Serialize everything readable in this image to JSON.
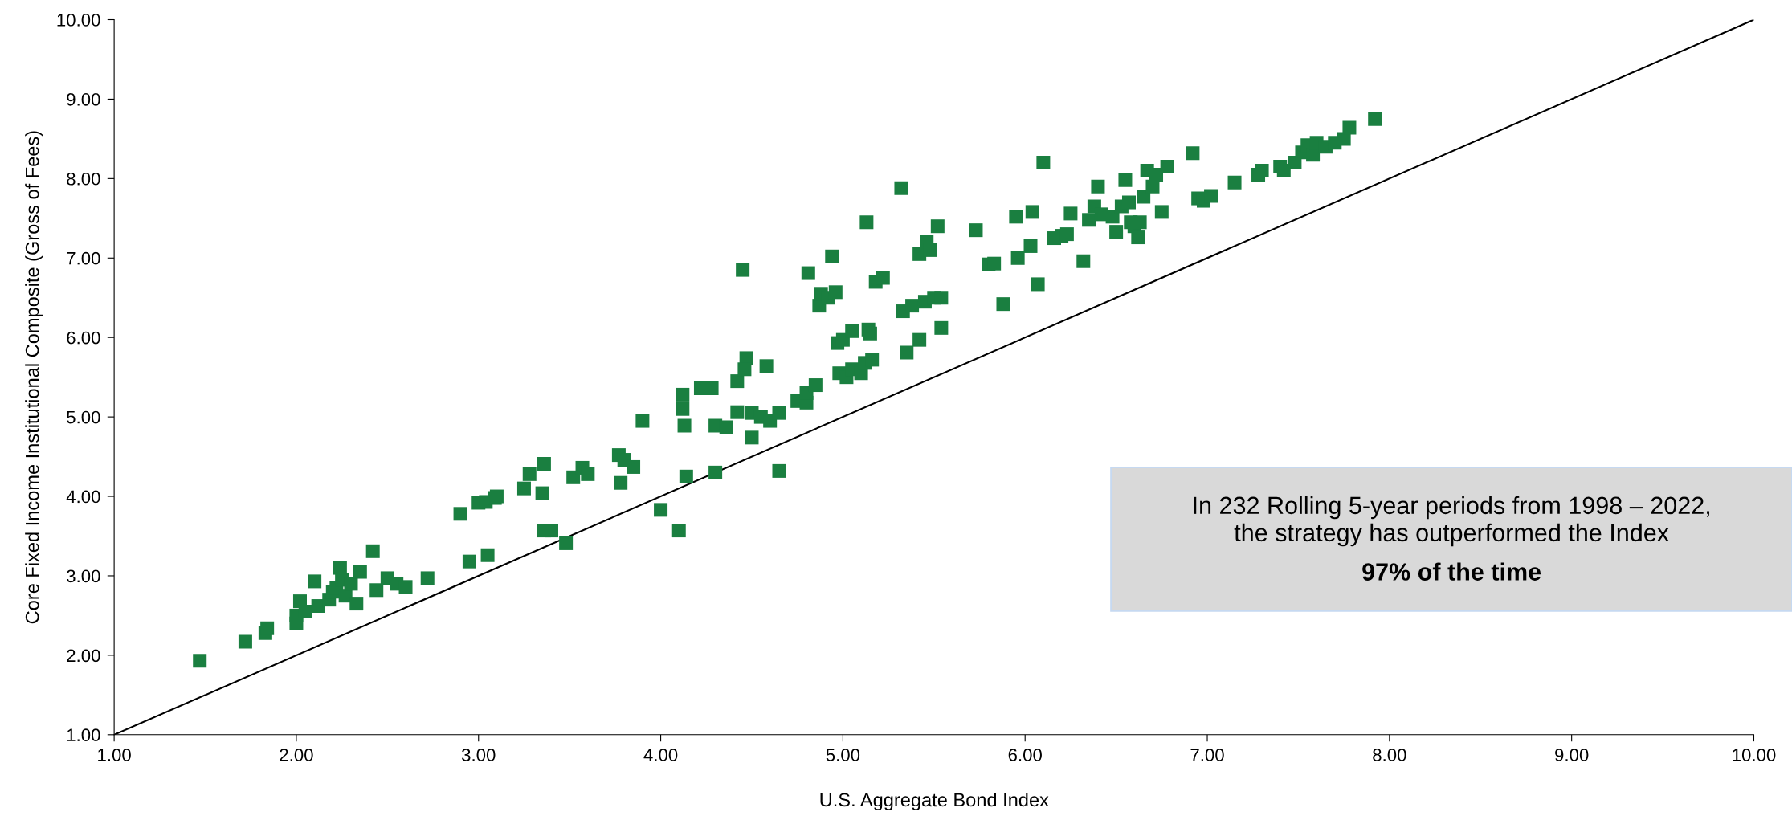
{
  "chart_data": {
    "type": "scatter",
    "xlabel": "U.S. Aggregate Bond Index",
    "ylabel": "Core Fixed Income Institutional Composite (Gross of Fees)",
    "xlim": [
      1,
      10
    ],
    "ylim": [
      1,
      10
    ],
    "xticks": [
      {
        "value": 1,
        "label": "1.00"
      },
      {
        "value": 2,
        "label": "2.00"
      },
      {
        "value": 3,
        "label": "3.00"
      },
      {
        "value": 4,
        "label": "4.00"
      },
      {
        "value": 5,
        "label": "5.00"
      },
      {
        "value": 6,
        "label": "6.00"
      },
      {
        "value": 7,
        "label": "7.00"
      },
      {
        "value": 8,
        "label": "8.00"
      },
      {
        "value": 9,
        "label": "9.00"
      },
      {
        "value": 10,
        "label": "10.00"
      }
    ],
    "yticks": [
      {
        "value": 1,
        "label": "1.00"
      },
      {
        "value": 2,
        "label": "2.00"
      },
      {
        "value": 3,
        "label": "3.00"
      },
      {
        "value": 4,
        "label": "4.00"
      },
      {
        "value": 5,
        "label": "5.00"
      },
      {
        "value": 6,
        "label": "6.00"
      },
      {
        "value": 7,
        "label": "7.00"
      },
      {
        "value": 8,
        "label": "8.00"
      },
      {
        "value": 9,
        "label": "9.00"
      },
      {
        "value": 10,
        "label": "10.00"
      }
    ],
    "grid": false,
    "annotations": [
      "In 232 Rolling 5-year periods from 1998 – 2022,\nthe strategy has outperformed the Index",
      "97% of the time"
    ],
    "series": [
      {
        "color": "#1a7f40",
        "marker": "square",
        "x": [
          1.47,
          1.72,
          1.83,
          1.84,
          2.0,
          2.0,
          2.02,
          2.05,
          2.1,
          2.12,
          2.18,
          2.2,
          2.22,
          2.24,
          2.25,
          2.27,
          2.3,
          2.33,
          2.35,
          2.42,
          2.44,
          2.5,
          2.55,
          2.6,
          2.72,
          2.9,
          2.95,
          3.0,
          3.04,
          3.05,
          3.09,
          3.1,
          3.25,
          3.28,
          3.35,
          3.36,
          3.36,
          3.4,
          3.48,
          3.52,
          3.57,
          3.6,
          3.77,
          3.78,
          3.8,
          3.85,
          3.9,
          4.0,
          4.1,
          4.12,
          4.12,
          4.13,
          4.14,
          4.22,
          4.28,
          4.3,
          4.3,
          4.36,
          4.42,
          4.42,
          4.45,
          4.47,
          4.46,
          4.5,
          4.5,
          4.55,
          4.58,
          4.6,
          4.65,
          4.65,
          4.75,
          4.8,
          4.8,
          4.81,
          4.85,
          4.87,
          4.88,
          4.92,
          4.94,
          4.96,
          4.97,
          4.98,
          5.0,
          5.02,
          5.05,
          5.05,
          5.1,
          5.12,
          5.13,
          5.14,
          5.15,
          5.16,
          5.18,
          5.22,
          5.32,
          5.33,
          5.35,
          5.38,
          5.42,
          5.42,
          5.45,
          5.46,
          5.48,
          5.5,
          5.52,
          5.54,
          5.54,
          5.73,
          5.8,
          5.83,
          5.88,
          5.95,
          5.96,
          6.03,
          6.04,
          6.07,
          6.1,
          6.16,
          6.2,
          6.23,
          6.25,
          6.32,
          6.35,
          6.38,
          6.4,
          6.42,
          6.48,
          6.5,
          6.53,
          6.55,
          6.57,
          6.58,
          6.6,
          6.62,
          6.63,
          6.65,
          6.67,
          6.7,
          6.72,
          6.75,
          6.78,
          6.92,
          6.95,
          6.98,
          7.02,
          7.15,
          7.28,
          7.3,
          7.4,
          7.42,
          7.48,
          7.52,
          7.55,
          7.58,
          7.6,
          7.65,
          7.7,
          7.75,
          7.78,
          7.92
        ],
        "values": [
          1.93,
          2.17,
          2.28,
          2.34,
          2.4,
          2.5,
          2.68,
          2.55,
          2.93,
          2.62,
          2.7,
          2.8,
          2.85,
          3.1,
          2.95,
          2.75,
          2.9,
          2.65,
          3.05,
          3.31,
          2.82,
          2.97,
          2.9,
          2.86,
          2.97,
          3.78,
          3.18,
          3.92,
          3.93,
          3.26,
          3.98,
          4.0,
          4.1,
          4.28,
          4.04,
          4.41,
          3.57,
          3.57,
          3.41,
          4.24,
          4.36,
          4.28,
          4.52,
          4.17,
          4.46,
          4.37,
          4.95,
          3.83,
          3.57,
          5.28,
          5.1,
          4.89,
          4.25,
          5.36,
          5.36,
          4.89,
          4.3,
          4.87,
          5.06,
          5.45,
          6.85,
          5.74,
          5.6,
          4.74,
          5.05,
          5.0,
          5.64,
          4.95,
          5.05,
          4.32,
          5.2,
          5.18,
          5.3,
          6.81,
          5.4,
          6.4,
          6.55,
          6.5,
          7.02,
          6.57,
          5.93,
          5.55,
          5.97,
          5.5,
          6.08,
          5.6,
          5.55,
          5.68,
          7.45,
          6.1,
          6.05,
          5.72,
          6.7,
          6.75,
          7.88,
          6.33,
          5.81,
          6.4,
          7.05,
          5.97,
          6.45,
          7.2,
          7.1,
          6.5,
          7.4,
          6.5,
          6.12,
          7.35,
          6.92,
          6.93,
          6.42,
          7.52,
          7.0,
          7.15,
          7.58,
          6.67,
          8.2,
          7.25,
          7.28,
          7.3,
          7.56,
          6.96,
          7.48,
          7.65,
          7.9,
          7.55,
          7.52,
          7.33,
          7.65,
          7.98,
          7.7,
          7.45,
          7.4,
          7.26,
          7.45,
          7.77,
          8.1,
          7.9,
          8.05,
          7.58,
          8.15,
          8.32,
          7.75,
          7.72,
          7.78,
          7.95,
          8.05,
          8.1,
          8.15,
          8.1,
          8.2,
          8.33,
          8.42,
          8.3,
          8.45,
          8.4,
          8.45,
          8.5,
          8.64,
          8.75
        ]
      },
      {
        "type": "line",
        "color": "#000000",
        "marker": "none",
        "line_style": "solid",
        "x": [
          1,
          10
        ],
        "values": [
          1,
          10
        ]
      }
    ]
  }
}
